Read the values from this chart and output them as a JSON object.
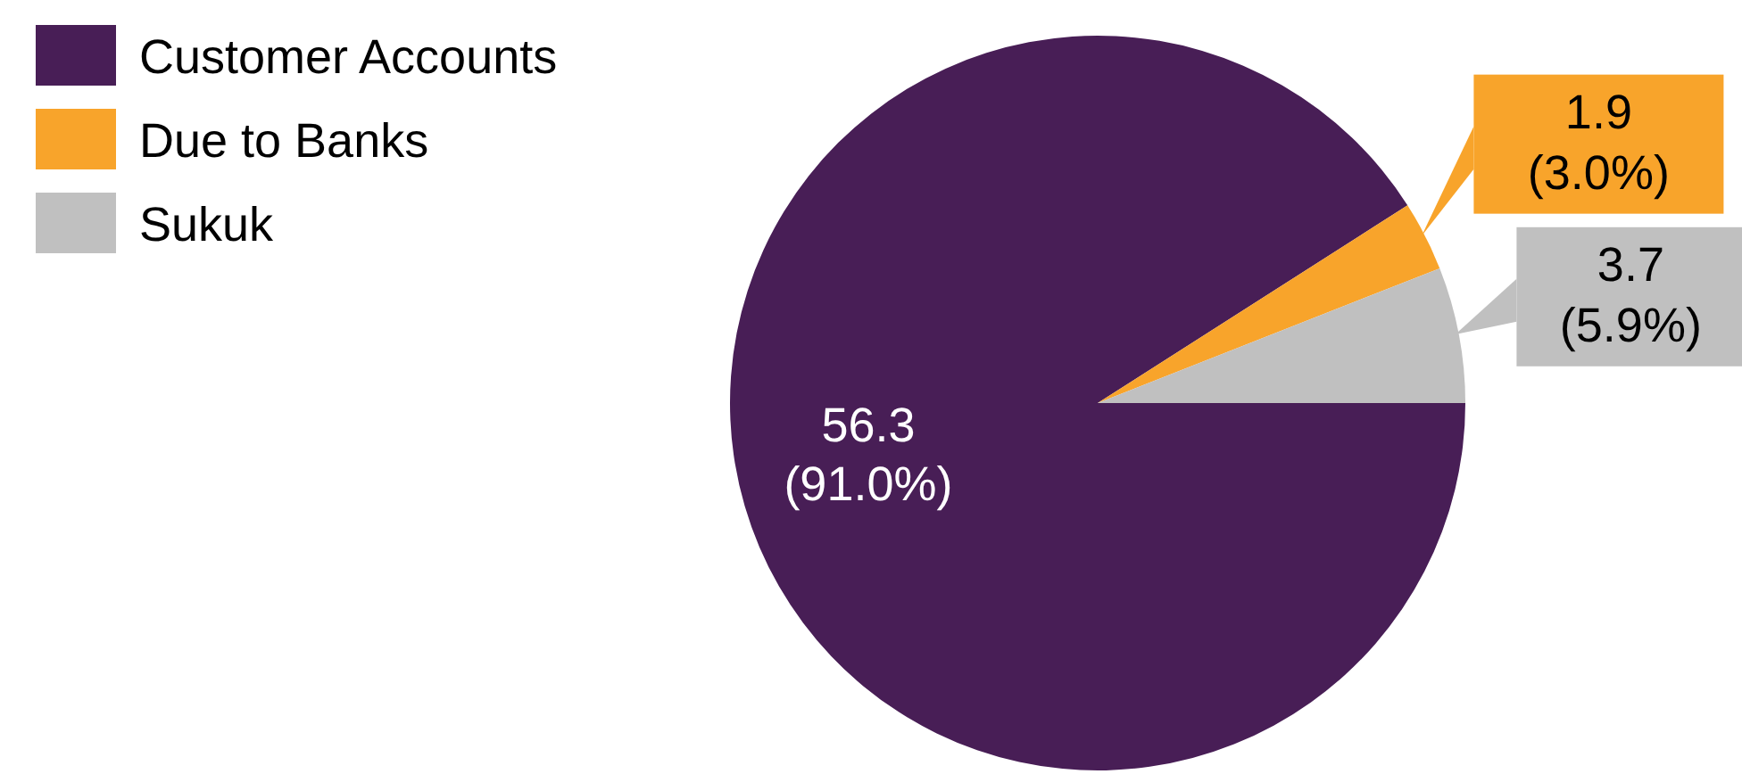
{
  "chart_data": {
    "type": "pie",
    "categories": [
      "Customer Accounts",
      "Due to Banks",
      "Sukuk"
    ],
    "values": [
      56.3,
      1.9,
      3.7
    ],
    "colors": [
      "#481e56",
      "#f8a42b",
      "#c0c0c0"
    ],
    "value_labels": [
      "56.3\n(91.0%)",
      "1.9\n(3.0%)",
      "3.7\n(5.9%)"
    ],
    "legend": "top left"
  }
}
